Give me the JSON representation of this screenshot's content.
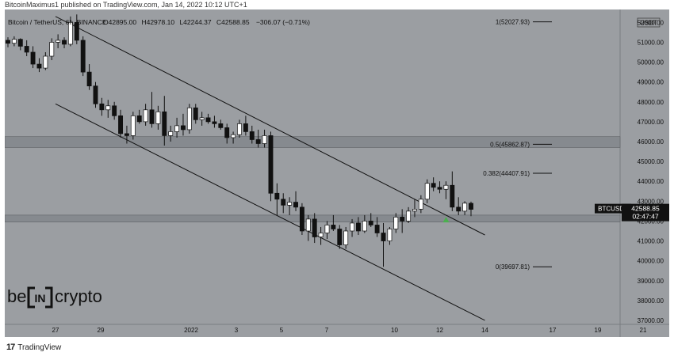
{
  "header": {
    "published": "BitcoinMaximus1 published on TradingView.com, Jan 14, 2022 10:12 UTC+1"
  },
  "legend": {
    "symbol": "Bitcoin / TetherUS, 6h, BINANCE",
    "open_label": "O",
    "open": "42895.00",
    "high_label": "H",
    "high": "42978.10",
    "low_label": "L",
    "low": "42244.37",
    "close_label": "C",
    "close": "42588.85",
    "change": "−306.07 (−0.71%)"
  },
  "price_axis": {
    "currency": "USDT",
    "ticks": [
      "52000.00",
      "51000.00",
      "50000.00",
      "49000.00",
      "48000.00",
      "47000.00",
      "46000.00",
      "45000.00",
      "44000.00",
      "43000.00",
      "42000.00",
      "41000.00",
      "40000.00",
      "39000.00",
      "38000.00",
      "37000.00"
    ],
    "ticker_label": "BTCUSDT",
    "last_price": "42588.85",
    "countdown": "02:47:47"
  },
  "time_axis": {
    "ticks": [
      "27",
      "29",
      "2022",
      "3",
      "5",
      "7",
      "10",
      "12",
      "14",
      "17",
      "19",
      "21"
    ]
  },
  "fib_levels": [
    {
      "label": "1(52027.93)",
      "price": 52027.93
    },
    {
      "label": "0.5(45862.87)",
      "price": 45862.87
    },
    {
      "label": "0.382(44407.91)",
      "price": 44407.91
    },
    {
      "label": "0(39697.81)",
      "price": 39697.81
    }
  ],
  "watermark": {
    "left": "be",
    "middle": "IN",
    "right": "crypto"
  },
  "footer": {
    "brand": "TradingView"
  },
  "colors": {
    "background": "#9b9ea2",
    "up_candle": "#ffffff",
    "down_candle": "#111111",
    "zone": "#868a8f",
    "arrow": "#4caf50",
    "channel": "#111111"
  },
  "chart_data": {
    "type": "candlestick",
    "interval": "6h",
    "ylim": [
      36800,
      52650
    ],
    "horizontal_zones": [
      {
        "from": 45700,
        "to": 46250
      },
      {
        "from": 41950,
        "to": 42300
      }
    ],
    "channel_lines": [
      {
        "from": [
          "Dec 27",
          52300
        ],
        "to": [
          "Jan 14",
          41300
        ]
      },
      {
        "from": [
          "Dec 27",
          47900
        ],
        "to": [
          "Jan 14",
          37000
        ]
      }
    ],
    "marker": {
      "type": "arrow-up",
      "at": [
        "Jan 12",
        42050
      ]
    },
    "candles": [
      [
        51100,
        51250,
        50750,
        50950
      ],
      [
        50950,
        51300,
        50800,
        51150
      ],
      [
        51150,
        51200,
        50600,
        50800
      ],
      [
        50800,
        51100,
        50300,
        50500
      ],
      [
        50500,
        50800,
        49700,
        49900
      ],
      [
        49900,
        50200,
        49500,
        49700
      ],
      [
        49700,
        50500,
        49600,
        50300
      ],
      [
        50300,
        51200,
        50100,
        51000
      ],
      [
        51000,
        51400,
        50700,
        51100
      ],
      [
        51100,
        51250,
        50700,
        50900
      ],
      [
        50900,
        52300,
        50800,
        52000
      ],
      [
        52000,
        52400,
        50900,
        51100
      ],
      [
        51100,
        51300,
        49300,
        49500
      ],
      [
        49500,
        49900,
        48600,
        48800
      ],
      [
        48800,
        49000,
        47700,
        47900
      ],
      [
        47900,
        48200,
        47300,
        47600
      ],
      [
        47600,
        48100,
        47200,
        47800
      ],
      [
        47800,
        48000,
        47100,
        47300
      ],
      [
        47300,
        47600,
        46200,
        46400
      ],
      [
        46400,
        46800,
        45900,
        46300
      ],
      [
        46300,
        47500,
        46100,
        47300
      ],
      [
        47300,
        47600,
        46900,
        47000
      ],
      [
        47000,
        47900,
        46800,
        47600
      ],
      [
        47600,
        48500,
        46700,
        46900
      ],
      [
        46900,
        47800,
        46600,
        47500
      ],
      [
        47500,
        48300,
        45800,
        46300
      ],
      [
        46300,
        46800,
        46000,
        46500
      ],
      [
        46500,
        47200,
        46200,
        46800
      ],
      [
        46800,
        47400,
        46300,
        46600
      ],
      [
        46600,
        47900,
        46400,
        47700
      ],
      [
        47700,
        47900,
        46900,
        47100
      ],
      [
        47100,
        47500,
        46800,
        47200
      ],
      [
        47200,
        47400,
        46900,
        47000
      ],
      [
        47000,
        47300,
        46700,
        46900
      ],
      [
        46900,
        47100,
        46600,
        46700
      ],
      [
        46700,
        46900,
        45900,
        46200
      ],
      [
        46200,
        46500,
        45900,
        46350
      ],
      [
        46350,
        47100,
        46200,
        46900
      ],
      [
        46900,
        47300,
        46300,
        46500
      ],
      [
        46500,
        46800,
        45900,
        46100
      ],
      [
        46100,
        46600,
        45700,
        45900
      ],
      [
        45900,
        46600,
        45700,
        46300
      ],
      [
        46300,
        46500,
        43000,
        43400
      ],
      [
        43400,
        43900,
        42300,
        43100
      ],
      [
        43100,
        43400,
        42400,
        42800
      ],
      [
        42800,
        43200,
        42300,
        42950
      ],
      [
        42950,
        43500,
        42500,
        42700
      ],
      [
        42700,
        42900,
        41300,
        41500
      ],
      [
        41500,
        42300,
        41000,
        42100
      ],
      [
        42100,
        42400,
        40900,
        41200
      ],
      [
        41200,
        41700,
        40800,
        41400
      ],
      [
        41400,
        42000,
        41100,
        41800
      ],
      [
        41800,
        42300,
        41500,
        41600
      ],
      [
        41600,
        41800,
        40600,
        40800
      ],
      [
        40800,
        41700,
        40600,
        41500
      ],
      [
        41500,
        42100,
        41200,
        41900
      ],
      [
        41900,
        42200,
        41300,
        41500
      ],
      [
        41500,
        42300,
        41400,
        42000
      ],
      [
        42000,
        42400,
        41700,
        41800
      ],
      [
        41800,
        42200,
        41200,
        41400
      ],
      [
        41400,
        41900,
        39700,
        41000
      ],
      [
        41000,
        41700,
        40800,
        41600
      ],
      [
        41600,
        42400,
        41400,
        42200
      ],
      [
        42200,
        42600,
        41400,
        42000
      ],
      [
        42000,
        42700,
        41900,
        42500
      ],
      [
        42500,
        43100,
        42200,
        42600
      ],
      [
        42600,
        43300,
        42400,
        43100
      ],
      [
        43100,
        44100,
        42900,
        43900
      ],
      [
        43900,
        44200,
        43500,
        43700
      ],
      [
        43700,
        44000,
        43400,
        43600
      ],
      [
        43600,
        44000,
        43100,
        43800
      ],
      [
        43800,
        44500,
        42500,
        42700
      ],
      [
        42700,
        43200,
        42300,
        42500
      ],
      [
        42500,
        43000,
        42300,
        42900
      ],
      [
        42895,
        42978.1,
        42244.37,
        42588.85
      ]
    ]
  }
}
